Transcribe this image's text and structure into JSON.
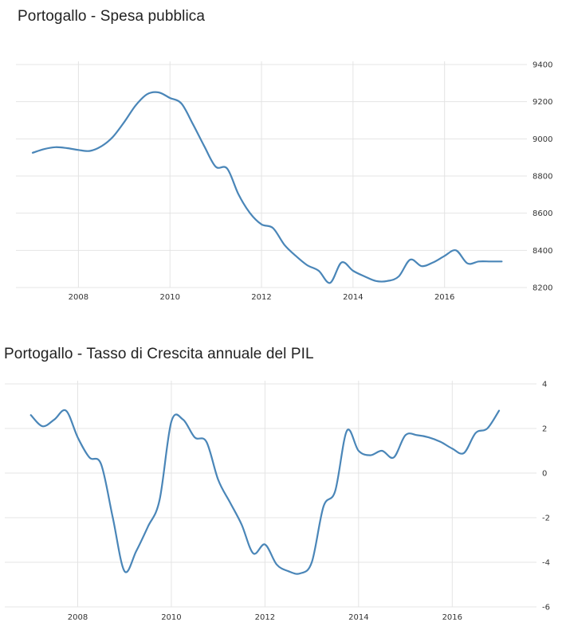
{
  "chart_data": [
    {
      "type": "line",
      "title": "Portogallo - Spesa pubblica",
      "xlabel": "",
      "ylabel": "",
      "xlim": [
        2007.0,
        2017.8
      ],
      "ylim": [
        8200,
        9400
      ],
      "x_ticks": [
        "2008",
        "2010",
        "2012",
        "2014",
        "2016"
      ],
      "y_ticks": [
        "9400",
        "9200",
        "9000",
        "8800",
        "8600",
        "8400",
        "8200"
      ],
      "grid": true,
      "series": [
        {
          "name": "",
          "x": [
            2007.0,
            2007.25,
            2007.5,
            2007.75,
            2008.0,
            2008.25,
            2008.5,
            2008.75,
            2009.0,
            2009.25,
            2009.5,
            2009.75,
            2010.0,
            2010.25,
            2010.5,
            2010.75,
            2011.0,
            2011.25,
            2011.5,
            2011.75,
            2012.0,
            2012.25,
            2012.5,
            2012.75,
            2013.0,
            2013.25,
            2013.5,
            2013.75,
            2014.0,
            2014.25,
            2014.5,
            2014.75,
            2015.0,
            2015.25,
            2015.5,
            2015.75,
            2016.0,
            2016.25,
            2016.5,
            2016.75,
            2017.0,
            2017.25
          ],
          "values": [
            8925,
            8945,
            8955,
            8950,
            8940,
            8935,
            8960,
            9010,
            9090,
            9180,
            9240,
            9250,
            9220,
            9190,
            9080,
            8960,
            8850,
            8840,
            8700,
            8600,
            8540,
            8520,
            8430,
            8370,
            8320,
            8290,
            8225,
            8335,
            8290,
            8260,
            8235,
            8235,
            8260,
            8350,
            8315,
            8335,
            8370,
            8400,
            8330,
            8340,
            8340,
            8340
          ]
        }
      ]
    },
    {
      "type": "line",
      "title": "Portogallo - Tasso di Crescita annuale del PIL",
      "xlabel": "",
      "ylabel": "",
      "xlim": [
        2006.8,
        2017.8
      ],
      "ylim": [
        -6,
        4
      ],
      "x_ticks": [
        "2008",
        "2010",
        "2012",
        "2014",
        "2016"
      ],
      "y_ticks": [
        "4",
        "2",
        "0",
        "-2",
        "-4",
        "-6"
      ],
      "grid": true,
      "series": [
        {
          "name": "",
          "x": [
            2007.0,
            2007.25,
            2007.5,
            2007.75,
            2008.0,
            2008.25,
            2008.5,
            2008.75,
            2009.0,
            2009.25,
            2009.5,
            2009.75,
            2010.0,
            2010.25,
            2010.5,
            2010.75,
            2011.0,
            2011.25,
            2011.5,
            2011.75,
            2012.0,
            2012.25,
            2012.5,
            2012.75,
            2013.0,
            2013.25,
            2013.5,
            2013.75,
            2014.0,
            2014.25,
            2014.5,
            2014.75,
            2015.0,
            2015.25,
            2015.5,
            2015.75,
            2016.0,
            2016.25,
            2016.5,
            2016.75,
            2017.0
          ],
          "values": [
            2.6,
            2.1,
            2.4,
            2.8,
            1.6,
            0.7,
            0.4,
            -2.0,
            -4.4,
            -3.5,
            -2.4,
            -1.2,
            2.3,
            2.4,
            1.6,
            1.4,
            -0.3,
            -1.3,
            -2.3,
            -3.6,
            -3.2,
            -4.1,
            -4.4,
            -4.5,
            -4.0,
            -1.5,
            -0.8,
            1.9,
            1.0,
            0.8,
            1.0,
            0.7,
            1.7,
            1.7,
            1.6,
            1.4,
            1.1,
            0.9,
            1.8,
            2.0,
            2.8
          ]
        }
      ]
    }
  ]
}
